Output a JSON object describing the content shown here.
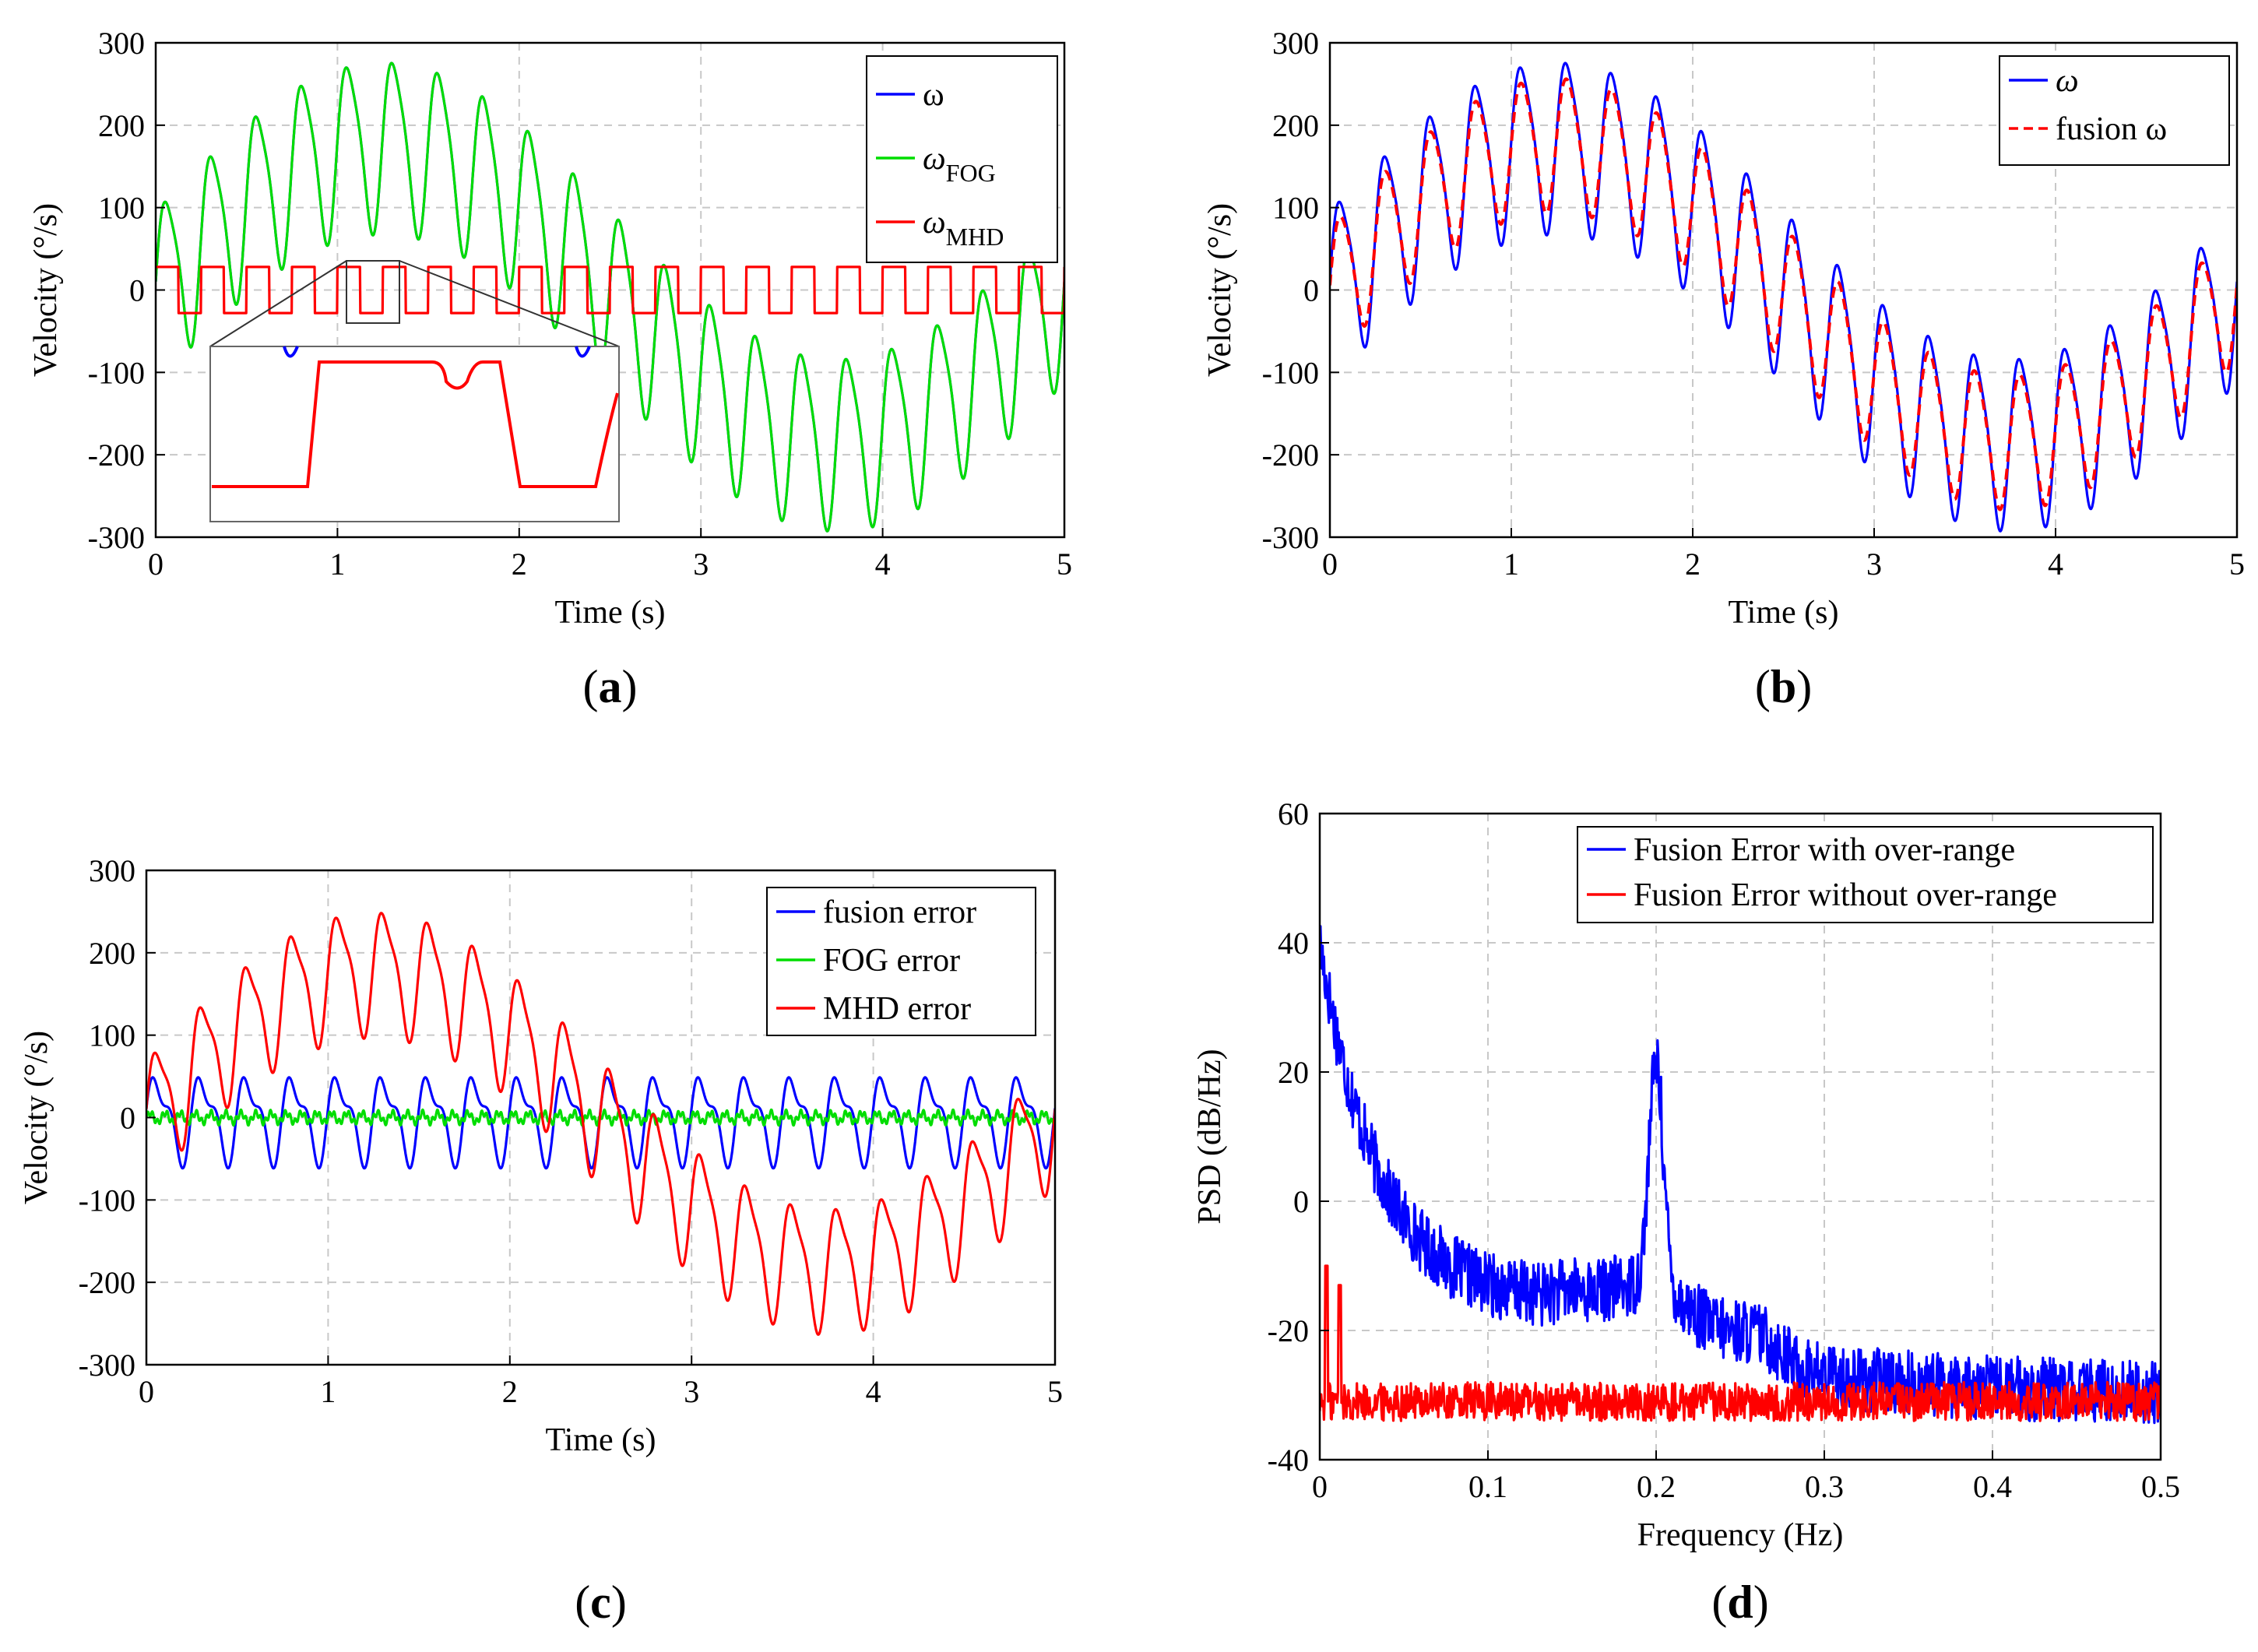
{
  "chart_data": [
    {
      "id": "a",
      "type": "line",
      "panel_label": "(a)",
      "xlabel": "Time (s)",
      "ylabel": "Velocity (°/s)",
      "xlim": [
        0,
        5
      ],
      "ylim": [
        -300,
        300
      ],
      "xticks": [
        0,
        1,
        2,
        3,
        4,
        5
      ],
      "yticks": [
        -300,
        -200,
        -100,
        0,
        100,
        200,
        300
      ],
      "grid": true,
      "legend_position": "top-right",
      "inset": {
        "description_zoom_x_range": [
          1.05,
          1.35
        ],
        "description_zoom_y_range": [
          -20,
          35
        ],
        "placement": "lower-left"
      },
      "series": [
        {
          "name": "ω",
          "color": "#0000ff",
          "style": "solid",
          "model": {
            "base_amplitude": 180,
            "base_freq_hz": 0.2,
            "ripple_amplitude": 100,
            "ripple_freq_hz": 4,
            "ripple2_amplitude": 18,
            "ripple2_freq_hz": 8
          }
        },
        {
          "name": "ω_FOG",
          "legend_main": "ω",
          "legend_sub": "FOG",
          "color": "#00dd00",
          "style": "solid",
          "model": {
            "base_amplitude": 180,
            "base_freq_hz": 0.2,
            "ripple_amplitude": 100,
            "ripple_freq_hz": 4,
            "ripple2_amplitude": 18,
            "ripple2_freq_hz": 8
          }
        },
        {
          "name": "ω_MHD",
          "legend_main": "ω",
          "legend_sub": "MHD",
          "color": "#ff0000",
          "style": "solid",
          "model": {
            "square_amplitude": 28,
            "square_freq_hz": 4
          }
        }
      ]
    },
    {
      "id": "b",
      "type": "line",
      "panel_label": "(b)",
      "xlabel": "Time (s)",
      "ylabel": "Velocity (°/s)",
      "xlim": [
        0,
        5
      ],
      "ylim": [
        -300,
        300
      ],
      "xticks": [
        0,
        1,
        2,
        3,
        4,
        5
      ],
      "yticks": [
        -300,
        -200,
        -100,
        0,
        100,
        200,
        300
      ],
      "grid": true,
      "legend_position": "top-right",
      "series": [
        {
          "name": "ω",
          "legend_main": "ω",
          "color": "#0000ff",
          "style": "solid",
          "model": {
            "base_amplitude": 180,
            "base_freq_hz": 0.2,
            "ripple_amplitude": 100,
            "ripple_freq_hz": 4,
            "ripple2_amplitude": 18,
            "ripple2_freq_hz": 8
          }
        },
        {
          "name": "fusion ω",
          "legend_main": "fusion ω",
          "color": "#ff0000",
          "style": "dashed",
          "model": {
            "base_amplitude": 180,
            "base_freq_hz": 0.2,
            "ripple_amplitude": 80,
            "ripple_freq_hz": 4,
            "ripple2_amplitude": 10,
            "ripple2_freq_hz": 8
          }
        }
      ]
    },
    {
      "id": "c",
      "type": "line",
      "panel_label": "(c)",
      "xlabel": "Time (s)",
      "ylabel": "Velocity (°/s)",
      "xlim": [
        0,
        5
      ],
      "ylim": [
        -300,
        300
      ],
      "xticks": [
        0,
        1,
        2,
        3,
        4,
        5
      ],
      "yticks": [
        -300,
        -200,
        -100,
        0,
        100,
        200,
        300
      ],
      "grid": true,
      "legend_position": "top-right",
      "series": [
        {
          "name": "fusion error",
          "legend_main": "fusion error",
          "color": "#0000ff",
          "style": "solid",
          "model": {
            "ripple_amplitude": 45,
            "ripple_freq_hz": 4,
            "ripple2_amplitude": 20,
            "ripple2_freq_hz": 8
          }
        },
        {
          "name": "FOG error",
          "legend_main": "FOG error",
          "color": "#00dd00",
          "style": "solid",
          "model": {
            "noise_amplitude": 8,
            "noise_freq_hz": 12
          }
        },
        {
          "name": "MHD error",
          "legend_main": "MHD error",
          "color": "#ff0000",
          "style": "solid",
          "model": {
            "base_amplitude": 180,
            "base_freq_hz": 0.2,
            "ripple_amplitude": 70,
            "ripple_freq_hz": 4,
            "ripple2_amplitude": 18,
            "ripple2_freq_hz": 8
          }
        }
      ]
    },
    {
      "id": "d",
      "type": "line",
      "panel_label": "(d)",
      "xlabel": "Frequency (Hz)",
      "ylabel": "PSD (dB/Hz)",
      "xlim": [
        0,
        0.5
      ],
      "ylim": [
        -40,
        60
      ],
      "xticks": [
        0,
        0.1,
        0.2,
        0.3,
        0.4,
        0.5
      ],
      "xticklabels": [
        "0",
        "0.1",
        "0.2",
        "0.3",
        "0.4",
        "0.5"
      ],
      "yticks": [
        -40,
        -20,
        0,
        20,
        40,
        60
      ],
      "grid": true,
      "legend_position": "top-right",
      "series": [
        {
          "name": "Fusion Error with over-range",
          "legend_main": "Fusion Error with over-range",
          "color": "#0000ff",
          "style": "solid",
          "model": {
            "start_db": 40,
            "decay_to_db": -16,
            "peak_at_hz": 0.2,
            "peak_db": 20,
            "tail_db": -30,
            "noise_db": 5
          }
        },
        {
          "name": "Fusion Error without over-range",
          "legend_main": "Fusion Error without over-range",
          "color": "#ff0000",
          "style": "solid",
          "model": {
            "floor_db": -31,
            "noise_db": 3,
            "spike_hz": [
              0.004,
              0.012
            ],
            "spike_db": [
              -10,
              -13
            ]
          }
        }
      ]
    }
  ]
}
